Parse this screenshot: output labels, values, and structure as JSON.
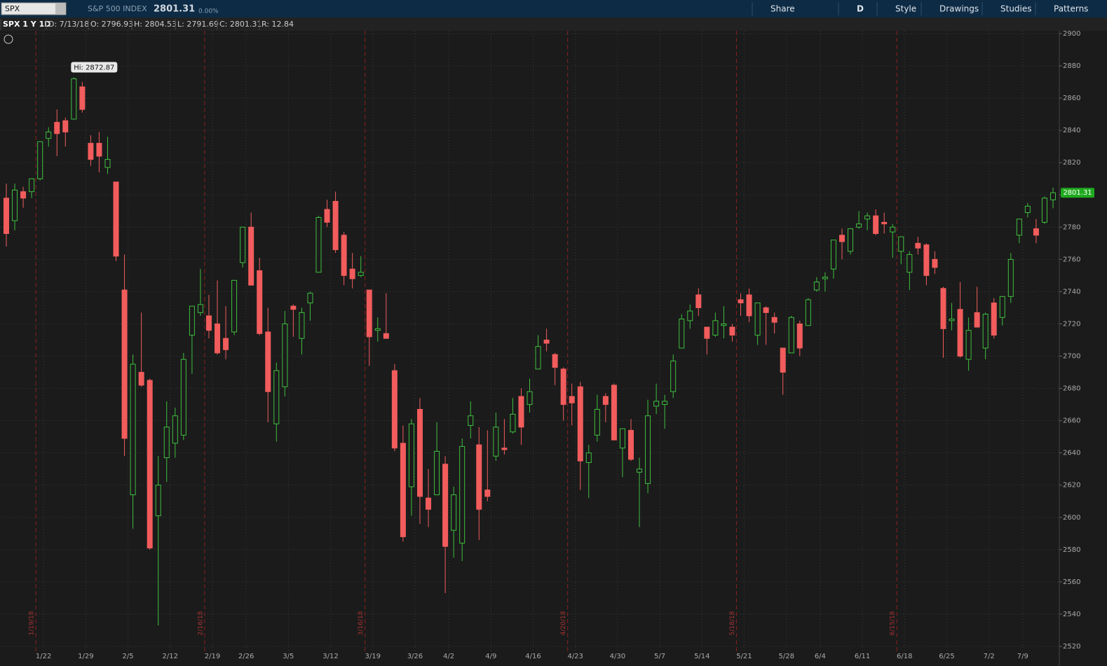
{
  "toolbar": {
    "symbol": "SPX",
    "description": "S&P 500 INDEX",
    "last": "2801.31",
    "change": "0.00%",
    "buttons": [
      "Share",
      "D",
      "Style",
      "Drawings",
      "Studies",
      "Patterns"
    ]
  },
  "info_bar": [
    "SPX 1 Y 1D",
    "D: 7/13/18",
    "O: 2796.93",
    "H: 2804.53",
    "L: 2791.69",
    "C: 2801.31",
    "R: 12.84"
  ],
  "chart_data": {
    "type": "candlestick",
    "annotation": "Hi: 2872.87",
    "up_color": "#3fbf3f",
    "down_color": "#f25c5c",
    "grid": true,
    "ylim": [
      2520,
      2900
    ],
    "yticks": [
      2520,
      2540,
      2560,
      2580,
      2600,
      2620,
      2640,
      2660,
      2680,
      2700,
      2720,
      2740,
      2760,
      2780,
      2800,
      2820,
      2840,
      2860,
      2880,
      2900
    ],
    "expirations": [
      "1/19/18",
      "2/16/18",
      "3/16/18",
      "4/20/18",
      "5/18/18",
      "6/15/18"
    ],
    "categories": [
      null,
      null,
      null,
      null,
      "1/22",
      null,
      null,
      null,
      null,
      "1/29",
      null,
      null,
      null,
      null,
      "2/5",
      null,
      null,
      null,
      null,
      "2/12",
      null,
      null,
      null,
      null,
      "2/19",
      null,
      null,
      null,
      "2/26",
      null,
      null,
      null,
      null,
      "3/5",
      null,
      null,
      null,
      null,
      "3/12",
      null,
      null,
      null,
      null,
      "3/19",
      null,
      null,
      null,
      null,
      "3/26",
      null,
      null,
      null,
      "4/2",
      null,
      null,
      null,
      null,
      "4/9",
      null,
      null,
      null,
      null,
      "4/16",
      null,
      null,
      null,
      null,
      "4/23",
      null,
      null,
      null,
      null,
      "4/30",
      null,
      null,
      null,
      null,
      "5/7",
      null,
      null,
      null,
      null,
      "5/14",
      null,
      null,
      null,
      null,
      "5/21",
      null,
      null,
      null,
      null,
      "5/28",
      null,
      null,
      null,
      "6/4",
      null,
      null,
      null,
      null,
      "6/11",
      null,
      null,
      null,
      null,
      "6/18",
      null,
      null,
      null,
      null,
      "6/25",
      null,
      null,
      null,
      null,
      "7/2",
      null,
      null,
      null,
      "7/9",
      null,
      null,
      null,
      null
    ],
    "open": [
      2798,
      2784,
      2802,
      2802,
      2810,
      2835,
      2845,
      2846,
      2847,
      2867,
      2832,
      2832,
      2817,
      2808,
      2741,
      2614,
      2690,
      2685,
      2601,
      2637,
      2646,
      2651,
      2713,
      2727,
      2725,
      2720,
      2711,
      2715,
      2758,
      2780,
      2753,
      2715,
      2658,
      2681,
      2731,
      2711,
      2733,
      2752,
      2791,
      2796,
      2775,
      2754,
      2750,
      2741,
      2716,
      2714,
      2691,
      2646,
      2619,
      2667,
      2612,
      2614,
      2633,
      2592,
      2584,
      2657,
      2645,
      2617,
      2638,
      2643,
      2653,
      2675,
      2670,
      2692,
      2710,
      2701,
      2692,
      2675,
      2681,
      2634,
      2651,
      2675,
      2682,
      2643,
      2654,
      2628,
      2621,
      2669,
      2670,
      2678,
      2705,
      2722,
      2738,
      2718,
      2713,
      2719,
      2718,
      2735,
      2738,
      2713,
      2730,
      2724,
      2705,
      2702,
      2720,
      2719,
      2741,
      2748,
      2754,
      2775,
      2765,
      2780,
      2785,
      2787,
      2783,
      2777,
      2765,
      2752,
      2770,
      2769,
      2760,
      2742,
      2722,
      2729,
      2698,
      2727,
      2705,
      2733,
      2724,
      2737,
      2775,
      2789,
      2779,
      2783,
      2796.93
    ],
    "high": [
      2807,
      2807,
      2805,
      2810,
      2833,
      2842,
      2853,
      2848,
      2872.87,
      2870,
      2837,
      2839,
      2836,
      2808,
      2763,
      2701,
      2727,
      2686,
      2638,
      2672,
      2668,
      2702,
      2731,
      2754,
      2738,
      2747,
      2731,
      2747,
      2780,
      2789,
      2761,
      2730,
      2696,
      2728,
      2732,
      2730,
      2740,
      2787,
      2797,
      2802,
      2777,
      2764,
      2762,
      2741,
      2724,
      2739,
      2695,
      2657,
      2661,
      2674,
      2630,
      2659,
      2638,
      2619,
      2649,
      2672,
      2656,
      2654,
      2665,
      2661,
      2674,
      2680,
      2686,
      2713,
      2717,
      2702,
      2693,
      2683,
      2684,
      2645,
      2676,
      2677,
      2683,
      2655,
      2661,
      2637,
      2673,
      2683,
      2676,
      2701,
      2726,
      2732,
      2742,
      2718,
      2727,
      2731,
      2720,
      2739,
      2742,
      2733,
      2731,
      2727,
      2705,
      2725,
      2722,
      2736,
      2749,
      2752,
      2772,
      2779,
      2779,
      2790,
      2789,
      2791,
      2789,
      2782,
      2774,
      2765,
      2774,
      2770,
      2765,
      2743,
      2733,
      2746,
      2724,
      2743,
      2727,
      2736,
      2737,
      2764,
      2785,
      2795,
      2785,
      2799,
      2804.53
    ],
    "low": [
      2768,
      2778,
      2792,
      2798,
      2809,
      2830,
      2824,
      2830,
      2847,
      2851,
      2818,
      2814,
      2813,
      2759,
      2638,
      2593,
      2681,
      2580,
      2533,
      2622,
      2637,
      2648,
      2689,
      2725,
      2711,
      2701,
      2698,
      2713,
      2755,
      2744,
      2713,
      2659,
      2647,
      2675,
      2712,
      2701,
      2722,
      2752,
      2780,
      2764,
      2744,
      2742,
      2749,
      2694,
      2709,
      2712,
      2641,
      2585,
      2601,
      2596,
      2594,
      2614,
      2553,
      2575,
      2573,
      2649,
      2586,
      2610,
      2635,
      2639,
      2652,
      2645,
      2665,
      2692,
      2703,
      2682,
      2660,
      2657,
      2617,
      2612,
      2647,
      2659,
      2648,
      2625,
      2635,
      2594,
      2615,
      2664,
      2655,
      2674,
      2705,
      2717,
      2725,
      2701,
      2712,
      2711,
      2709,
      2725,
      2721,
      2707,
      2707,
      2714,
      2676,
      2702,
      2700,
      2719,
      2740,
      2740,
      2748,
      2760,
      2763,
      2779,
      2778,
      2775,
      2776,
      2761,
      2757,
      2741,
      2763,
      2744,
      2751,
      2699,
      2716,
      2699,
      2691,
      2718,
      2698,
      2711,
      2719,
      2733,
      2770,
      2786,
      2770,
      2782,
      2791.69
    ],
    "close": [
      2776,
      2803,
      2798,
      2810,
      2833,
      2839,
      2838,
      2839,
      2872,
      2853,
      2822,
      2824,
      2822,
      2762,
      2649,
      2695,
      2682,
      2581,
      2620,
      2656,
      2663,
      2698,
      2731,
      2732,
      2716,
      2702,
      2704,
      2747,
      2780,
      2744,
      2714,
      2678,
      2691,
      2720,
      2729,
      2727,
      2739,
      2786,
      2783,
      2766,
      2750,
      2748,
      2752,
      2712,
      2717,
      2711,
      2643,
      2588,
      2658,
      2613,
      2605,
      2641,
      2582,
      2614,
      2644,
      2663,
      2605,
      2613,
      2656,
      2642,
      2664,
      2656,
      2678,
      2706,
      2708,
      2693,
      2670,
      2671,
      2635,
      2640,
      2667,
      2670,
      2648,
      2655,
      2636,
      2630,
      2663,
      2672,
      2672,
      2697,
      2723,
      2728,
      2730,
      2711,
      2722,
      2720,
      2713,
      2733,
      2725,
      2733,
      2727,
      2721,
      2690,
      2724,
      2705,
      2735,
      2746,
      2749,
      2772,
      2771,
      2779,
      2782,
      2787,
      2776,
      2782,
      2780,
      2774,
      2763,
      2767,
      2750,
      2755,
      2717,
      2723,
      2700,
      2716,
      2718,
      2726,
      2713,
      2737,
      2760,
      2785,
      2793,
      2775,
      2798,
      2801.31
    ]
  }
}
